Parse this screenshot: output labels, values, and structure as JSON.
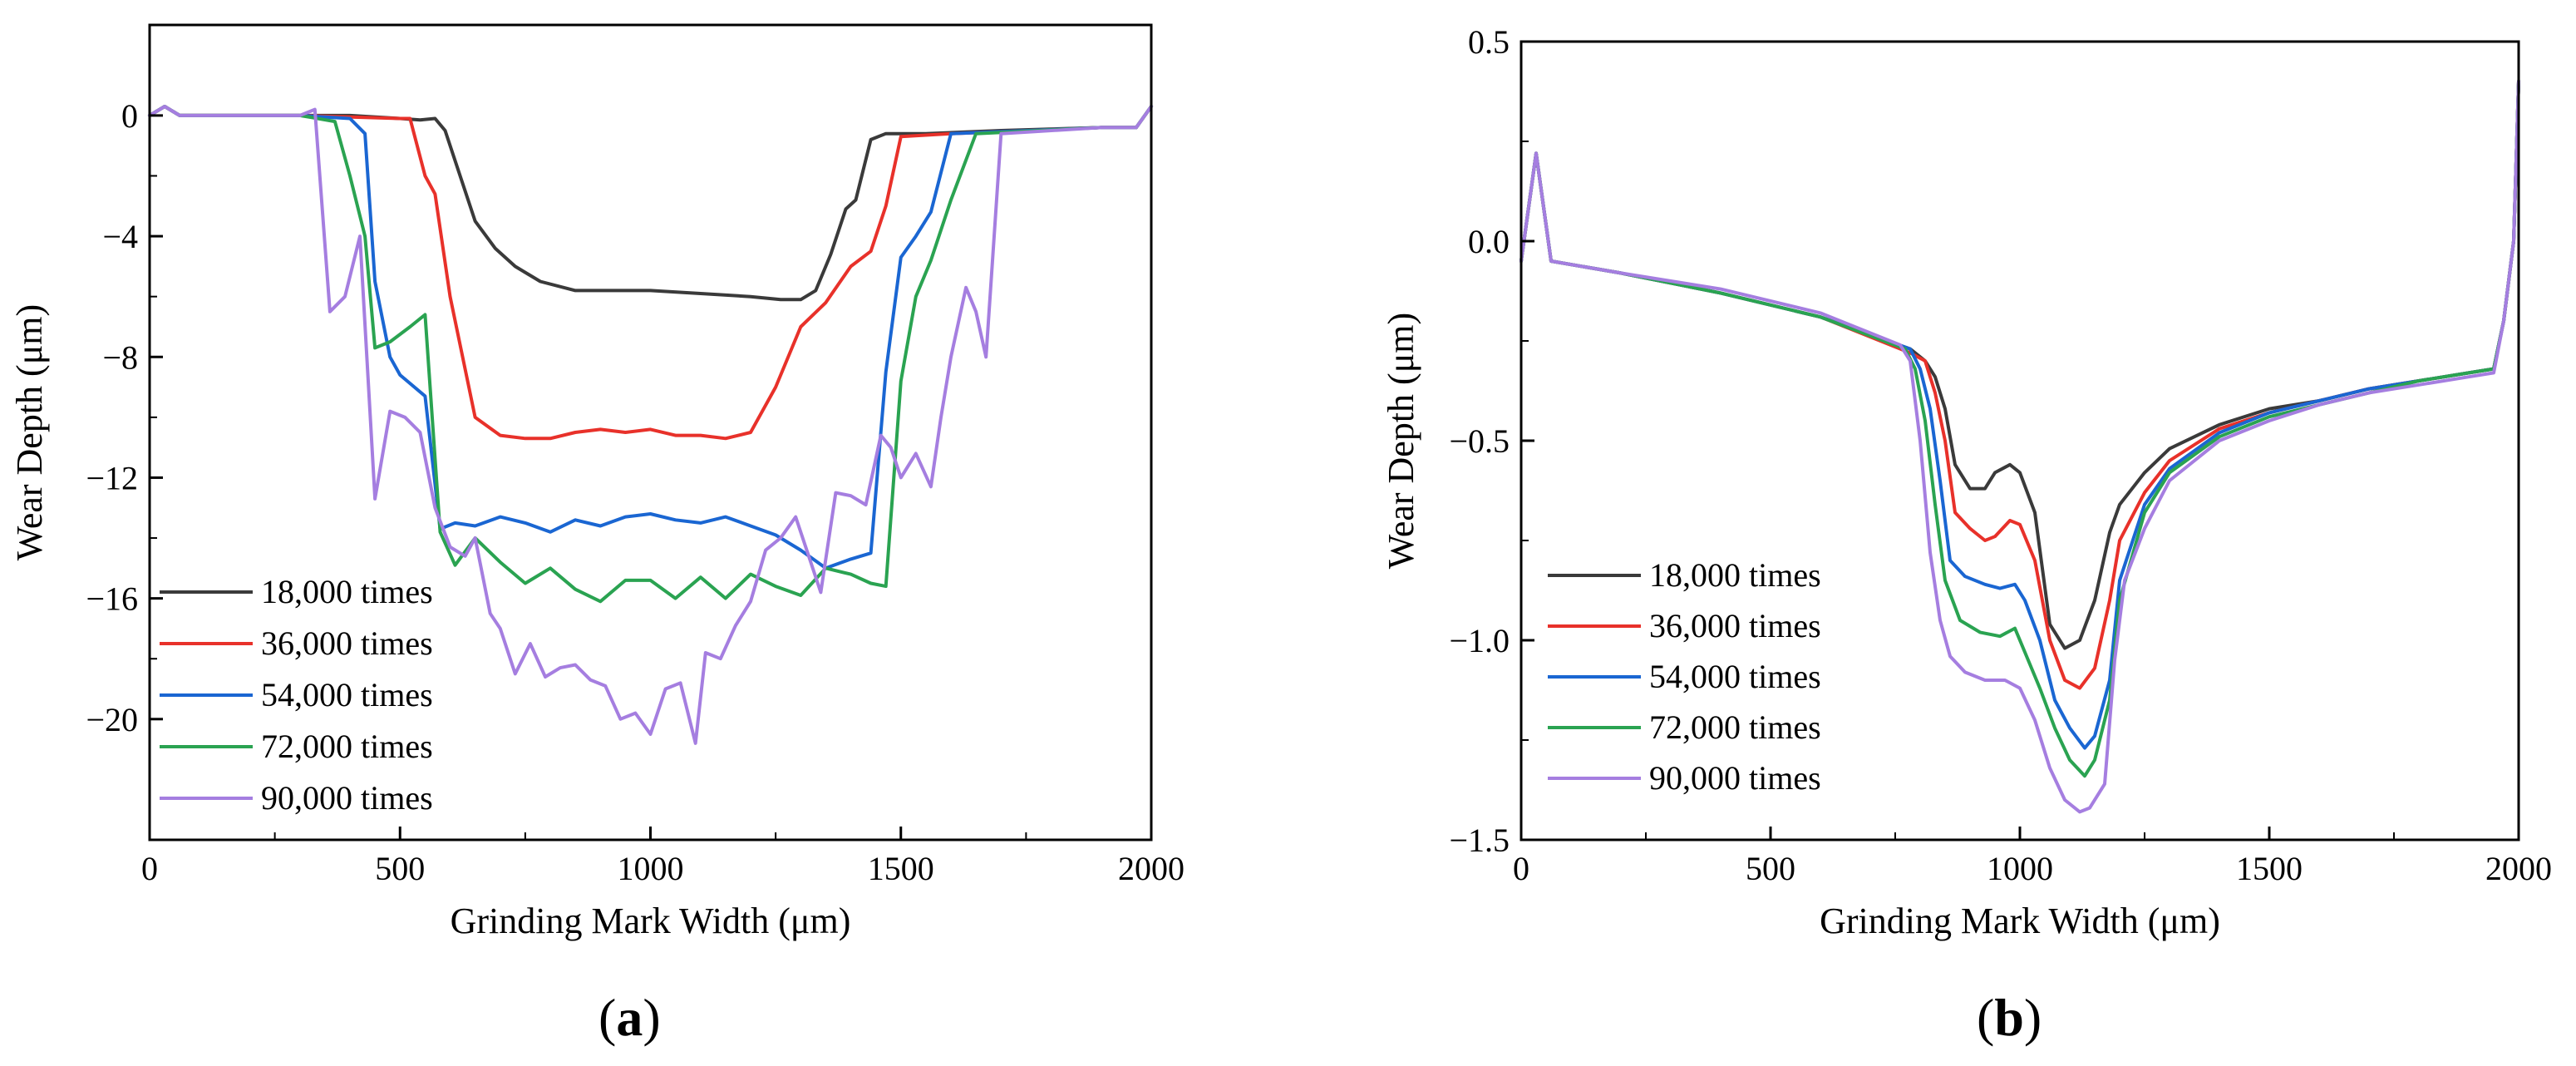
{
  "figure": {
    "panel_labels": [
      [
        "(",
        "a",
        ")"
      ],
      [
        "(",
        "b",
        ")"
      ]
    ]
  },
  "chart_data": [
    {
      "type": "line",
      "panel": "a",
      "title": "",
      "xlabel": "Grinding Mark Width (μm)",
      "ylabel": "Wear Depth (μm)",
      "xlim": [
        0,
        2000
      ],
      "ylim": [
        -24,
        3
      ],
      "xticks": [
        0,
        500,
        1000,
        1500,
        2000
      ],
      "xtick_labels": [
        "0",
        "500",
        "1000",
        "1500",
        "2000"
      ],
      "yticks": [
        0,
        -4,
        -8,
        -12,
        -16,
        -20
      ],
      "ytick_labels": [
        "0",
        "−4",
        "−8",
        "−12",
        "−16",
        "−20"
      ],
      "legend_position": "bottom-left",
      "series": [
        {
          "name": "18,000 times",
          "color": "#3a3a3a",
          "x": [
            0,
            30,
            60,
            100,
            200,
            300,
            400,
            500,
            540,
            570,
            590,
            610,
            650,
            690,
            730,
            780,
            850,
            900,
            1000,
            1100,
            1200,
            1260,
            1300,
            1330,
            1360,
            1390,
            1410,
            1440,
            1470,
            1550,
            1700,
            1900,
            1970,
            2000
          ],
          "y": [
            0,
            0.3,
            0,
            0,
            0,
            0,
            0,
            -0.1,
            -0.15,
            -0.1,
            -0.5,
            -1.5,
            -3.5,
            -4.4,
            -5.0,
            -5.5,
            -5.8,
            -5.8,
            -5.8,
            -5.9,
            -6.0,
            -6.1,
            -6.1,
            -5.8,
            -4.6,
            -3.1,
            -2.8,
            -0.8,
            -0.6,
            -0.6,
            -0.5,
            -0.4,
            -0.4,
            0.3
          ]
        },
        {
          "name": "36,000 times",
          "color": "#e8312a",
          "x": [
            0,
            30,
            60,
            300,
            500,
            520,
            550,
            570,
            600,
            650,
            700,
            750,
            800,
            850,
            900,
            950,
            1000,
            1050,
            1100,
            1150,
            1200,
            1250,
            1300,
            1350,
            1400,
            1440,
            1470,
            1500,
            1600,
            1900,
            1970,
            2000
          ],
          "y": [
            0,
            0.3,
            0,
            0,
            -0.1,
            -0.1,
            -2.0,
            -2.6,
            -6.0,
            -10.0,
            -10.6,
            -10.7,
            -10.7,
            -10.5,
            -10.4,
            -10.5,
            -10.4,
            -10.6,
            -10.6,
            -10.7,
            -10.5,
            -9.0,
            -7.0,
            -6.2,
            -5.0,
            -4.5,
            -3.0,
            -0.7,
            -0.6,
            -0.4,
            -0.4,
            0.3
          ]
        },
        {
          "name": "54,000 times",
          "color": "#1a66d2",
          "x": [
            0,
            30,
            60,
            300,
            400,
            430,
            450,
            480,
            500,
            550,
            580,
            610,
            650,
            700,
            750,
            800,
            850,
            900,
            950,
            1000,
            1050,
            1100,
            1150,
            1200,
            1250,
            1300,
            1350,
            1400,
            1440,
            1470,
            1500,
            1530,
            1560,
            1600,
            1900,
            1970,
            2000
          ],
          "y": [
            0,
            0.3,
            0,
            0,
            -0.1,
            -0.6,
            -5.5,
            -8.0,
            -8.6,
            -9.3,
            -13.7,
            -13.5,
            -13.6,
            -13.3,
            -13.5,
            -13.8,
            -13.4,
            -13.6,
            -13.3,
            -13.2,
            -13.4,
            -13.5,
            -13.3,
            -13.6,
            -13.9,
            -14.4,
            -15.0,
            -14.7,
            -14.5,
            -8.5,
            -4.7,
            -4.0,
            -3.2,
            -0.6,
            -0.4,
            -0.4,
            0.3
          ]
        },
        {
          "name": "72,000 times",
          "color": "#2aa351",
          "x": [
            0,
            30,
            60,
            300,
            370,
            400,
            430,
            450,
            480,
            520,
            550,
            580,
            610,
            650,
            700,
            750,
            800,
            850,
            900,
            950,
            1000,
            1050,
            1100,
            1150,
            1200,
            1250,
            1300,
            1350,
            1400,
            1440,
            1470,
            1500,
            1530,
            1560,
            1600,
            1650,
            1900,
            1970,
            2000
          ],
          "y": [
            0,
            0.3,
            0,
            0,
            -0.2,
            -2.0,
            -4.0,
            -7.7,
            -7.5,
            -7.0,
            -6.6,
            -13.8,
            -14.9,
            -14.0,
            -14.8,
            -15.5,
            -15.0,
            -15.7,
            -16.1,
            -15.4,
            -15.4,
            -16.0,
            -15.3,
            -16.0,
            -15.2,
            -15.6,
            -15.9,
            -15.0,
            -15.2,
            -15.5,
            -15.6,
            -8.8,
            -6.0,
            -4.8,
            -2.8,
            -0.6,
            -0.4,
            -0.4,
            0.3
          ]
        },
        {
          "name": "90,000 times",
          "color": "#a57ee0",
          "x": [
            0,
            30,
            60,
            300,
            330,
            360,
            390,
            420,
            450,
            480,
            510,
            540,
            570,
            600,
            630,
            650,
            680,
            700,
            730,
            760,
            790,
            820,
            850,
            880,
            910,
            940,
            970,
            1000,
            1030,
            1060,
            1090,
            1110,
            1140,
            1170,
            1200,
            1230,
            1260,
            1290,
            1310,
            1340,
            1370,
            1400,
            1430,
            1460,
            1480,
            1500,
            1530,
            1560,
            1580,
            1600,
            1630,
            1650,
            1670,
            1700,
            1900,
            1970,
            2000
          ],
          "y": [
            0,
            0.3,
            0,
            0,
            0.2,
            -6.5,
            -6.0,
            -4.0,
            -12.7,
            -9.8,
            -10.0,
            -10.5,
            -13.0,
            -14.3,
            -14.6,
            -14.0,
            -16.5,
            -17.0,
            -18.5,
            -17.5,
            -18.6,
            -18.3,
            -18.2,
            -18.7,
            -18.9,
            -20.0,
            -19.8,
            -20.5,
            -19.0,
            -18.8,
            -20.8,
            -17.8,
            -18.0,
            -16.9,
            -16.1,
            -14.4,
            -14.0,
            -13.3,
            -14.3,
            -15.8,
            -12.5,
            -12.6,
            -12.9,
            -10.6,
            -11.0,
            -12.0,
            -11.2,
            -12.3,
            -10.0,
            -8.0,
            -5.7,
            -6.5,
            -8.0,
            -0.6,
            -0.4,
            -0.4,
            0.3
          ]
        }
      ]
    },
    {
      "type": "line",
      "panel": "b",
      "title": "",
      "xlabel": "Grinding Mark Width (μm)",
      "ylabel": "Wear Depth (μm)",
      "xlim": [
        0,
        2000
      ],
      "ylim": [
        -1.5,
        0.5
      ],
      "xticks": [
        0,
        500,
        1000,
        1500,
        2000
      ],
      "xtick_labels": [
        "0",
        "500",
        "1000",
        "1500",
        "2000"
      ],
      "yticks": [
        0.5,
        0.0,
        -0.5,
        -1.0,
        -1.5
      ],
      "ytick_labels": [
        "0.5",
        "0.0",
        "−0.5",
        "−1.0",
        "−1.5"
      ],
      "legend_position": "bottom-left",
      "series": [
        {
          "name": "18,000 times",
          "color": "#3a3a3a",
          "x": [
            0,
            30,
            60,
            200,
            400,
            600,
            780,
            810,
            830,
            850,
            870,
            900,
            930,
            950,
            980,
            1000,
            1030,
            1060,
            1090,
            1120,
            1150,
            1180,
            1200,
            1250,
            1300,
            1400,
            1500,
            1600,
            1700,
            1800,
            1900,
            1950,
            1970,
            1990,
            2000
          ],
          "y": [
            -0.05,
            0.22,
            -0.05,
            -0.08,
            -0.13,
            -0.19,
            -0.27,
            -0.3,
            -0.34,
            -0.42,
            -0.56,
            -0.62,
            -0.62,
            -0.58,
            -0.56,
            -0.58,
            -0.68,
            -0.96,
            -1.02,
            -1.0,
            -0.9,
            -0.73,
            -0.66,
            -0.58,
            -0.52,
            -0.46,
            -0.42,
            -0.4,
            -0.37,
            -0.35,
            -0.33,
            -0.32,
            -0.2,
            0.0,
            0.4
          ]
        },
        {
          "name": "36,000 times",
          "color": "#e8312a",
          "x": [
            0,
            30,
            60,
            200,
            400,
            600,
            780,
            810,
            830,
            850,
            870,
            900,
            930,
            950,
            980,
            1000,
            1030,
            1060,
            1090,
            1120,
            1150,
            1180,
            1200,
            1250,
            1300,
            1400,
            1500,
            1600,
            1700,
            1800,
            1900,
            1950,
            1970,
            1990,
            2000
          ],
          "y": [
            -0.05,
            0.22,
            -0.05,
            -0.08,
            -0.13,
            -0.19,
            -0.28,
            -0.3,
            -0.38,
            -0.5,
            -0.68,
            -0.72,
            -0.75,
            -0.74,
            -0.7,
            -0.71,
            -0.8,
            -1.0,
            -1.1,
            -1.12,
            -1.07,
            -0.9,
            -0.75,
            -0.63,
            -0.55,
            -0.47,
            -0.43,
            -0.4,
            -0.37,
            -0.35,
            -0.33,
            -0.32,
            -0.2,
            0.0,
            0.4
          ]
        },
        {
          "name": "54,000 times",
          "color": "#1a66d2",
          "x": [
            0,
            30,
            60,
            200,
            400,
            600,
            780,
            800,
            820,
            840,
            860,
            890,
            930,
            960,
            990,
            1010,
            1040,
            1070,
            1100,
            1130,
            1150,
            1180,
            1200,
            1250,
            1300,
            1400,
            1500,
            1600,
            1700,
            1800,
            1900,
            1950,
            1970,
            1990,
            2000
          ],
          "y": [
            -0.05,
            0.22,
            -0.05,
            -0.08,
            -0.13,
            -0.19,
            -0.27,
            -0.32,
            -0.42,
            -0.6,
            -0.8,
            -0.84,
            -0.86,
            -0.87,
            -0.86,
            -0.9,
            -1.0,
            -1.15,
            -1.22,
            -1.27,
            -1.24,
            -1.1,
            -0.85,
            -0.66,
            -0.57,
            -0.48,
            -0.43,
            -0.4,
            -0.37,
            -0.35,
            -0.33,
            -0.32,
            -0.2,
            0.0,
            0.4
          ]
        },
        {
          "name": "72,000 times",
          "color": "#2aa351",
          "x": [
            0,
            30,
            60,
            200,
            400,
            600,
            770,
            790,
            810,
            830,
            850,
            880,
            920,
            960,
            990,
            1010,
            1040,
            1070,
            1100,
            1130,
            1150,
            1180,
            1200,
            1250,
            1300,
            1400,
            1500,
            1600,
            1700,
            1800,
            1900,
            1950,
            1970,
            1990,
            2000
          ],
          "y": [
            -0.05,
            0.22,
            -0.05,
            -0.08,
            -0.13,
            -0.19,
            -0.27,
            -0.32,
            -0.45,
            -0.66,
            -0.85,
            -0.95,
            -0.98,
            -0.99,
            -0.97,
            -1.03,
            -1.12,
            -1.22,
            -1.3,
            -1.34,
            -1.3,
            -1.15,
            -0.9,
            -0.68,
            -0.58,
            -0.49,
            -0.44,
            -0.41,
            -0.38,
            -0.35,
            -0.33,
            -0.32,
            -0.2,
            0.0,
            0.4
          ]
        },
        {
          "name": "90,000 times",
          "color": "#a57ee0",
          "x": [
            0,
            30,
            60,
            200,
            400,
            600,
            760,
            780,
            800,
            820,
            840,
            860,
            890,
            930,
            970,
            1000,
            1030,
            1060,
            1090,
            1120,
            1140,
            1170,
            1190,
            1210,
            1250,
            1300,
            1400,
            1500,
            1600,
            1700,
            1800,
            1900,
            1950,
            1970,
            1990,
            2000
          ],
          "y": [
            -0.05,
            0.22,
            -0.05,
            -0.08,
            -0.12,
            -0.18,
            -0.26,
            -0.3,
            -0.5,
            -0.78,
            -0.95,
            -1.04,
            -1.08,
            -1.1,
            -1.1,
            -1.12,
            -1.2,
            -1.32,
            -1.4,
            -1.43,
            -1.42,
            -1.36,
            -1.05,
            -0.85,
            -0.72,
            -0.6,
            -0.5,
            -0.45,
            -0.41,
            -0.38,
            -0.36,
            -0.34,
            -0.33,
            -0.2,
            0.0,
            0.4
          ]
        }
      ]
    }
  ]
}
